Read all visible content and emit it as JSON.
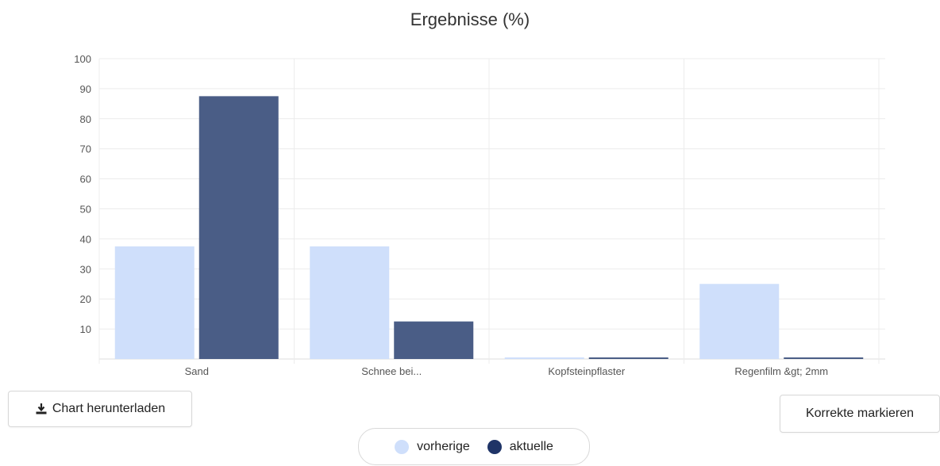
{
  "chart_data": {
    "type": "bar",
    "title": "Ergebnisse (%)",
    "categories": [
      "Sand",
      "Schnee bei...",
      "Kopfsteinpflaster",
      "Regenfilm &gt; 2mm"
    ],
    "series": [
      {
        "name": "vorherige",
        "color": "#cfdffb",
        "values": [
          37.5,
          37.5,
          0,
          25
        ]
      },
      {
        "name": "aktuelle",
        "color": "#4a5d86",
        "values": [
          87.5,
          12.5,
          0,
          0
        ]
      }
    ],
    "yticks": [
      10,
      20,
      30,
      40,
      50,
      60,
      70,
      80,
      90,
      100
    ],
    "ylim": [
      0,
      100
    ],
    "grid": true,
    "legend_position": "bottom"
  },
  "buttons": {
    "download_label": "Chart herunterladen",
    "mark_label": "Korrekte markieren"
  }
}
